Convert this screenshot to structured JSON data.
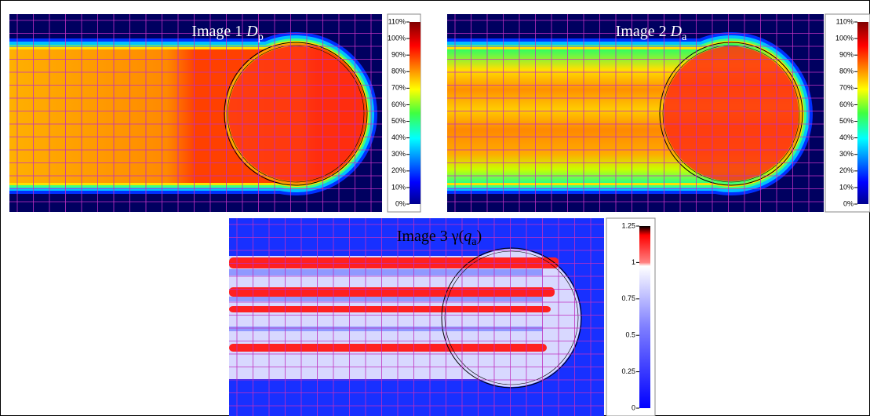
{
  "panels": [
    {
      "title_parts": [
        "Image 1 ",
        "D",
        "p"
      ],
      "colorbar": {
        "lim": [
          0,
          110
        ],
        "ticks": [
          {
            "value": 0,
            "label": "0%"
          },
          {
            "value": 10,
            "label": "10%"
          },
          {
            "value": 20,
            "label": "20%"
          },
          {
            "value": 30,
            "label": "30%"
          },
          {
            "value": 40,
            "label": "40%"
          },
          {
            "value": 50,
            "label": "50%"
          },
          {
            "value": 60,
            "label": "60%"
          },
          {
            "value": 70,
            "label": "70%"
          },
          {
            "value": 80,
            "label": "80%"
          },
          {
            "value": 90,
            "label": "90%"
          },
          {
            "value": 100,
            "label": "100%"
          },
          {
            "value": 110,
            "label": "110%"
          }
        ]
      }
    },
    {
      "title_parts": [
        "Image 2 ",
        "D",
        "a"
      ],
      "colorbar": {
        "lim": [
          0,
          110
        ],
        "ticks": [
          {
            "value": 0,
            "label": "0%"
          },
          {
            "value": 10,
            "label": "10%"
          },
          {
            "value": 20,
            "label": "20%"
          },
          {
            "value": 30,
            "label": "30%"
          },
          {
            "value": 40,
            "label": "40%"
          },
          {
            "value": 50,
            "label": "50%"
          },
          {
            "value": 60,
            "label": "60%"
          },
          {
            "value": 70,
            "label": "70%"
          },
          {
            "value": 80,
            "label": "80%"
          },
          {
            "value": 90,
            "label": "90%"
          },
          {
            "value": 100,
            "label": "100%"
          },
          {
            "value": 110,
            "label": "110%"
          }
        ]
      }
    },
    {
      "title_parts": [
        "Image 3 γ(",
        "q",
        "a",
        ")"
      ],
      "colorbar": {
        "lim": [
          0,
          1.25
        ],
        "ticks": [
          0,
          0.25,
          0.5,
          0.75,
          1,
          1.25
        ]
      }
    }
  ]
}
